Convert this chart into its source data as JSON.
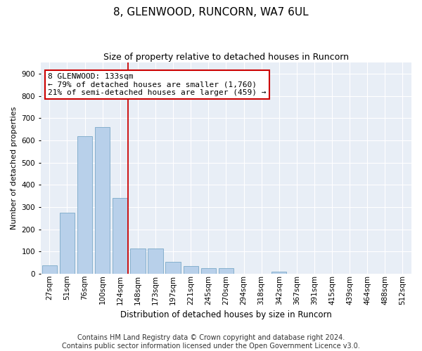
{
  "title": "8, GLENWOOD, RUNCORN, WA7 6UL",
  "subtitle": "Size of property relative to detached houses in Runcorn",
  "xlabel": "Distribution of detached houses by size in Runcorn",
  "ylabel": "Number of detached properties",
  "bin_labels": [
    "27sqm",
    "51sqm",
    "76sqm",
    "100sqm",
    "124sqm",
    "148sqm",
    "173sqm",
    "197sqm",
    "221sqm",
    "245sqm",
    "270sqm",
    "294sqm",
    "318sqm",
    "342sqm",
    "367sqm",
    "391sqm",
    "415sqm",
    "439sqm",
    "464sqm",
    "488sqm",
    "512sqm"
  ],
  "bar_heights": [
    38,
    275,
    620,
    660,
    340,
    115,
    115,
    55,
    35,
    25,
    25,
    0,
    0,
    10,
    0,
    0,
    0,
    0,
    0,
    0,
    0
  ],
  "bar_color": "#b8d0ea",
  "bar_edge_color": "#6a9ec0",
  "vline_x": 4.45,
  "vline_color": "#cc0000",
  "annotation_text": "8 GLENWOOD: 133sqm\n← 79% of detached houses are smaller (1,760)\n21% of semi-detached houses are larger (459) →",
  "annotation_box_color": "#ffffff",
  "annotation_box_edge": "#cc0000",
  "ylim": [
    0,
    950
  ],
  "yticks": [
    0,
    100,
    200,
    300,
    400,
    500,
    600,
    700,
    800,
    900
  ],
  "background_color": "#e8eef6",
  "footer": "Contains HM Land Registry data © Crown copyright and database right 2024.\nContains public sector information licensed under the Open Government Licence v3.0.",
  "title_fontsize": 11,
  "subtitle_fontsize": 9,
  "ylabel_fontsize": 8,
  "xlabel_fontsize": 8.5,
  "tick_fontsize": 7.5,
  "footer_fontsize": 7,
  "annot_fontsize": 8
}
